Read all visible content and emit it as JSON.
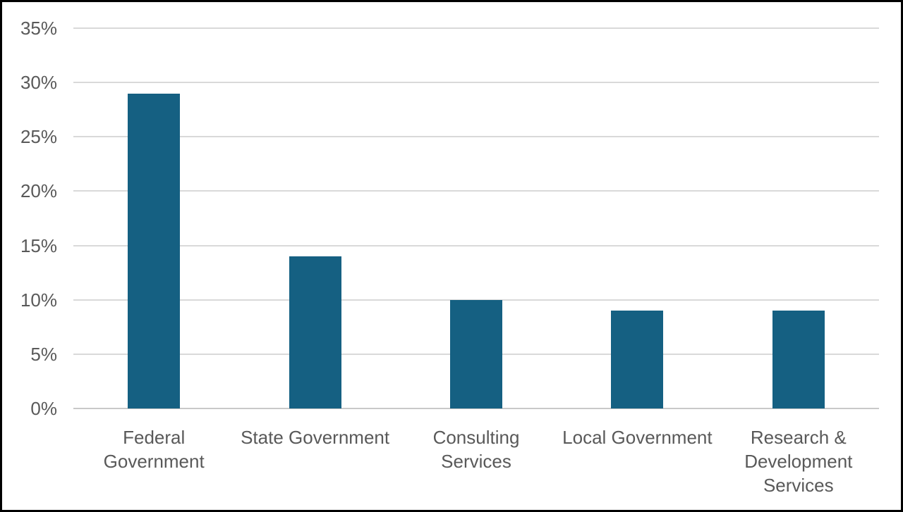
{
  "chart_data": {
    "type": "bar",
    "title": "",
    "xlabel": "",
    "ylabel": "",
    "categories": [
      "Federal Government",
      "State Government",
      "Consulting Services",
      "Local Government",
      "Research & Development Services"
    ],
    "category_label_lines": [
      [
        "Federal",
        "Government"
      ],
      [
        "State Government"
      ],
      [
        "Consulting",
        "Services"
      ],
      [
        "Local Government"
      ],
      [
        "Research &",
        "Development",
        "Services"
      ]
    ],
    "values": [
      29,
      14,
      10,
      9,
      9
    ],
    "value_unit": "%",
    "ylim": [
      0,
      35
    ],
    "ytick_step": 5,
    "ytick_labels": [
      "0%",
      "5%",
      "10%",
      "15%",
      "20%",
      "25%",
      "30%",
      "35%"
    ],
    "grid": true,
    "legend_position": "none",
    "colors": {
      "bar_fill": "#156082",
      "gridline": "#D9D9D9",
      "axis_line": "#C9C9C9",
      "tick_label_text": "#595959",
      "background": "#FFFFFF",
      "frame_border": "#000000"
    }
  }
}
